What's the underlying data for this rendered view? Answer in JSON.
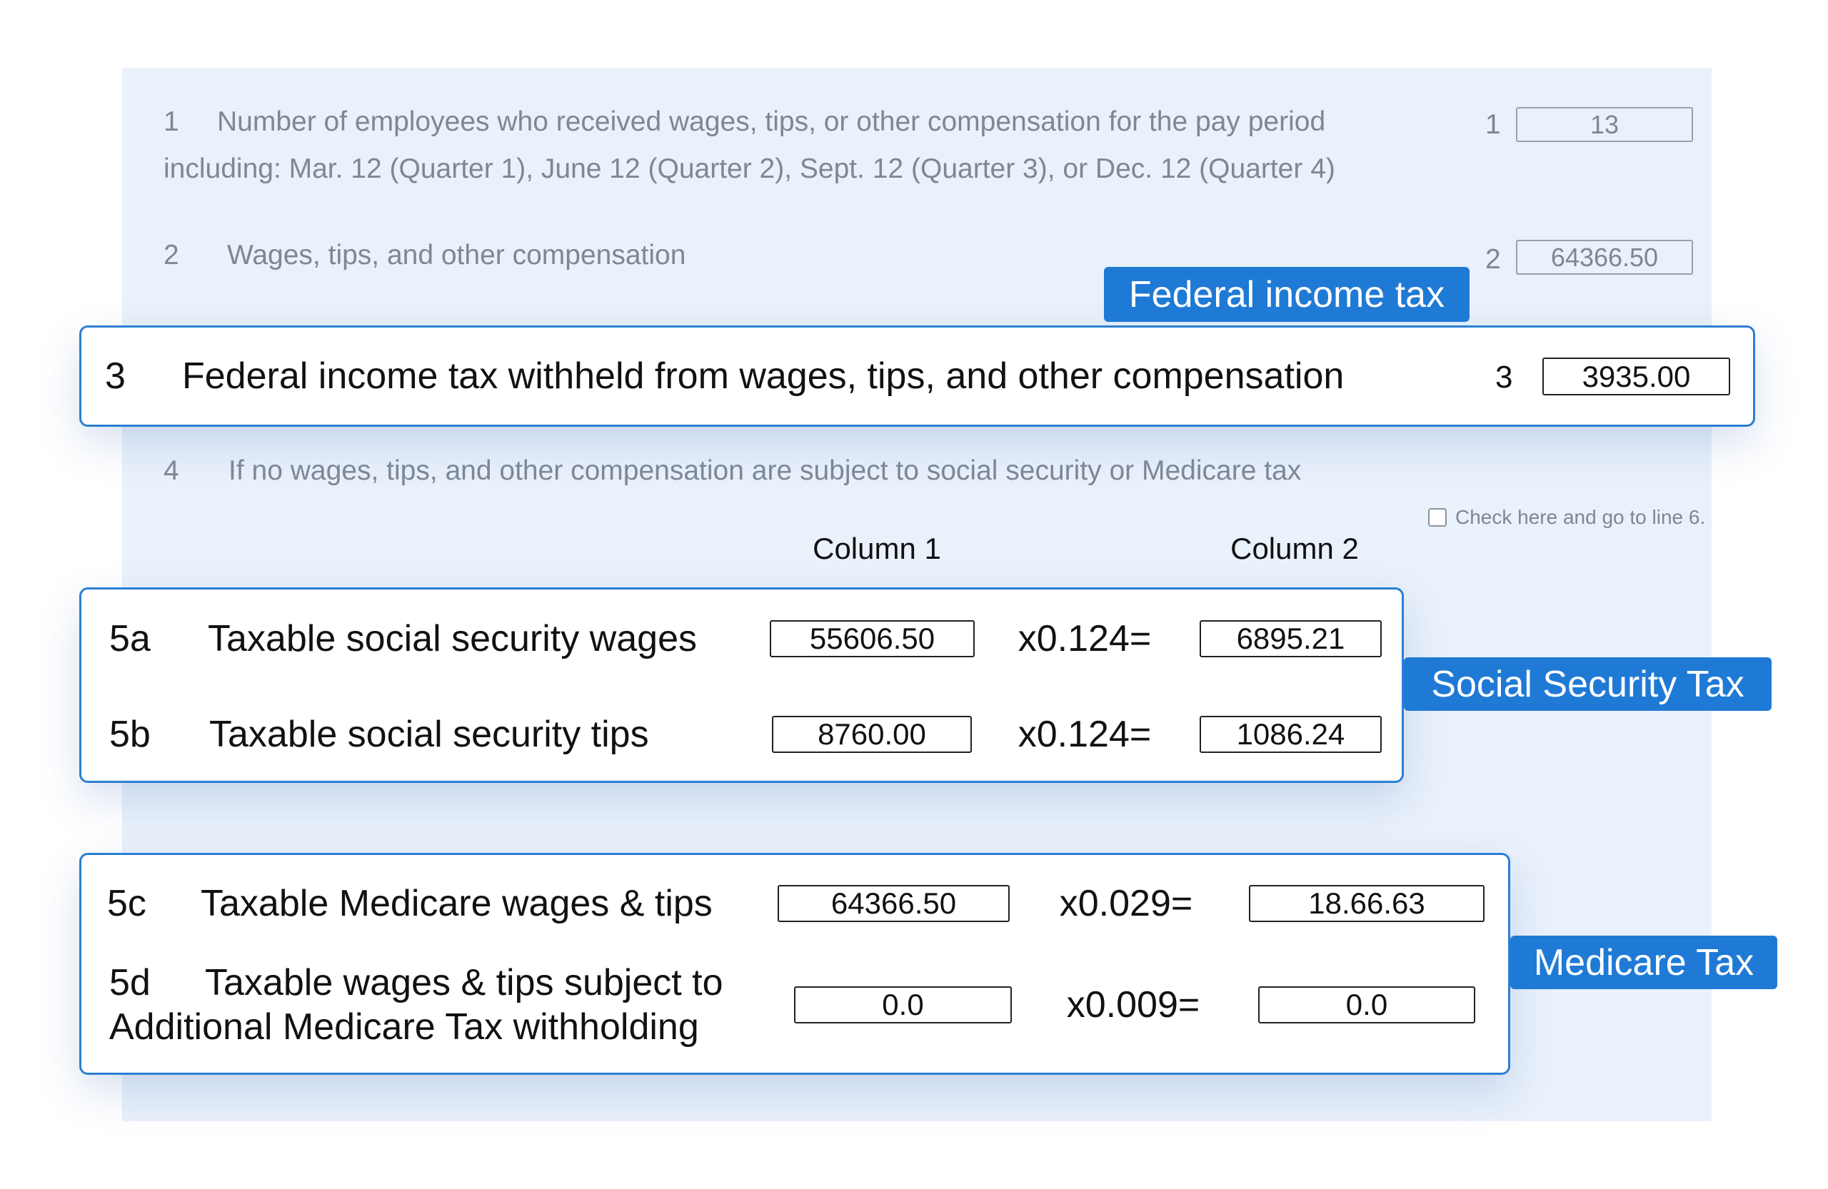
{
  "federal_tag": "Federal income tax",
  "lines": [
    {
      "number": "1",
      "text": [
        "Number of employees who received wages, tips, or other compensation for the pay period",
        "including: Mar. 12 (Quarter 1), June 12 (Quarter 2), Sept. 12 (Quarter 3), or Dec. 12 (Quarter 4)"
      ],
      "box_label": "1",
      "value": "13"
    },
    {
      "number": "2",
      "text": "Wages, tips, and other compensation",
      "box_label": "2",
      "value": "64366.50"
    },
    {
      "number": "3",
      "text": "Federal income tax withheld from wages, tips, and other compensation",
      "box_label": "3",
      "value": "3935.00"
    },
    {
      "number": "4",
      "text": "If no wages, tips, and other compensation are subject to social security or Medicare tax",
      "checkbox_label": "Check here and go to line 6."
    }
  ],
  "columns": [
    "Column 1",
    "Column 2"
  ],
  "social_security": {
    "tag": "Social Security Tax",
    "rows": [
      {
        "number": "5a",
        "text": "Taxable social security wages",
        "column_1": "55606.50",
        "multiplier": "x0.124=",
        "column_2": "6895.21"
      },
      {
        "number": "5b",
        "text": "Taxable social security tips",
        "column_1": "8760.00",
        "multiplier": "x0.124=",
        "column_2": "1086.24"
      }
    ]
  },
  "medicare": {
    "tag": "Medicare Tax",
    "rows": [
      {
        "number": "5c",
        "text": "Taxable Medicare wages & tips",
        "column_1": "64366.50",
        "multiplier": "x0.029=",
        "column_2": "18.66.63"
      },
      {
        "number": "5d",
        "text": [
          "Taxable wages & tips subject to",
          "Additional Medicare Tax withholding"
        ],
        "column_1": "0.0",
        "multiplier": "x0.009=",
        "column_2": "0.0"
      }
    ]
  }
}
